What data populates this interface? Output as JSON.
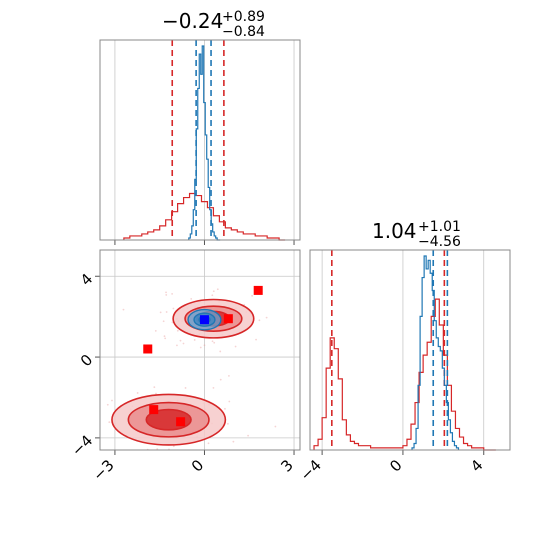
{
  "chart_data": [
    {
      "panel": "top-left",
      "type": "histogram",
      "title": {
        "value": "−0.24",
        "sup": "+0.89",
        "sub": "−0.84"
      },
      "xlim": [
        -3.5,
        3.2
      ],
      "xticks": [
        -3,
        0,
        3
      ],
      "grid": true,
      "series": [
        {
          "name": "",
          "color": "#d62728",
          "x": [
            -2.6,
            -2.4,
            -2.2,
            -2.0,
            -1.8,
            -1.6,
            -1.4,
            -1.2,
            -1.0,
            -0.8,
            -0.6,
            -0.4,
            -0.2,
            0.0,
            0.2,
            0.4,
            0.6,
            0.8,
            1.0,
            1.2,
            1.4,
            1.6,
            1.8,
            2.0,
            2.2,
            2.4,
            2.6
          ],
          "density": [
            0.01,
            0.02,
            0.02,
            0.03,
            0.04,
            0.05,
            0.07,
            0.1,
            0.14,
            0.18,
            0.21,
            0.23,
            0.22,
            0.19,
            0.16,
            0.12,
            0.09,
            0.06,
            0.05,
            0.04,
            0.03,
            0.03,
            0.02,
            0.02,
            0.01,
            0.01,
            0.0
          ],
          "lines": [
            -1.08,
            0.65
          ]
        },
        {
          "name": "",
          "color": "#1f77b4",
          "x": [
            -0.5,
            -0.45,
            -0.4,
            -0.35,
            -0.3,
            -0.25,
            -0.2,
            -0.15,
            -0.1,
            -0.05,
            0.0,
            0.05,
            0.1,
            0.15,
            0.2,
            0.25,
            0.3,
            0.35,
            0.4,
            0.45,
            0.5
          ],
          "density": [
            0.01,
            0.03,
            0.07,
            0.15,
            0.3,
            0.55,
            0.75,
            0.92,
            0.82,
            0.96,
            0.68,
            0.52,
            0.4,
            0.26,
            0.15,
            0.08,
            0.04,
            0.02,
            0.01,
            0.0,
            0.0
          ],
          "lines": [
            -0.28,
            0.22
          ]
        }
      ]
    },
    {
      "panel": "bottom-right",
      "type": "histogram",
      "title": {
        "value": "1.04",
        "sup": "+1.01",
        "sub": "−4.56"
      },
      "xlim": [
        -4.6,
        5.3
      ],
      "xticks": [
        -4,
        0,
        4
      ],
      "grid": true,
      "series": [
        {
          "name": "",
          "color": "#d62728",
          "x": [
            -4.3,
            -4.1,
            -3.9,
            -3.7,
            -3.5,
            -3.3,
            -3.1,
            -2.9,
            -2.7,
            -2.5,
            -2.3,
            -2.1,
            -1.9,
            -1.7,
            -1.5,
            -1.3,
            -1.1,
            -0.9,
            -0.7,
            -0.5,
            -0.3,
            -0.1,
            0.1,
            0.3,
            0.5,
            0.7,
            0.9,
            1.1,
            1.3,
            1.5,
            1.7,
            1.9,
            2.1,
            2.3,
            2.5,
            2.7,
            2.9,
            3.1,
            3.3,
            3.5,
            3.7,
            3.9,
            4.1,
            4.3,
            4.5
          ],
          "density": [
            0.02,
            0.05,
            0.15,
            0.38,
            0.52,
            0.47,
            0.33,
            0.14,
            0.07,
            0.04,
            0.03,
            0.02,
            0.02,
            0.02,
            0.01,
            0.01,
            0.01,
            0.01,
            0.01,
            0.01,
            0.01,
            0.01,
            0.02,
            0.05,
            0.12,
            0.22,
            0.36,
            0.44,
            0.5,
            0.62,
            0.7,
            0.58,
            0.44,
            0.3,
            0.18,
            0.1,
            0.06,
            0.03,
            0.02,
            0.01,
            0.01,
            0.01,
            0.0,
            0.0,
            0.0
          ],
          "lines": [
            -3.52,
            2.05
          ]
        },
        {
          "name": "",
          "color": "#1f77b4",
          "x": [
            0.5,
            0.6,
            0.7,
            0.8,
            0.9,
            1.0,
            1.1,
            1.2,
            1.3,
            1.4,
            1.5,
            1.6,
            1.7,
            1.8,
            1.9,
            2.0,
            2.1,
            2.2,
            2.3,
            2.4,
            2.5,
            2.6,
            2.7
          ],
          "density": [
            0.01,
            0.03,
            0.1,
            0.3,
            0.62,
            0.8,
            0.9,
            0.84,
            0.88,
            0.82,
            0.74,
            0.6,
            0.52,
            0.48,
            0.46,
            0.38,
            0.3,
            0.22,
            0.14,
            0.08,
            0.04,
            0.02,
            0.01
          ],
          "lines": [
            1.5,
            2.2
          ]
        }
      ]
    },
    {
      "panel": "bottom-left",
      "type": "contour-scatter",
      "xlim": [
        -3.5,
        3.2
      ],
      "ylim": [
        -4.6,
        5.3
      ],
      "xticks": [
        -3,
        0,
        3
      ],
      "yticks": [
        -4,
        0,
        4
      ],
      "grid": true,
      "red_modes": [
        {
          "cx": 0.3,
          "cy": 1.9,
          "levels": [
            [
              1.35,
              0.95
            ],
            [
              0.95,
              0.62
            ],
            [
              0.55,
              0.36
            ]
          ]
        },
        {
          "cx": -1.2,
          "cy": -3.1,
          "levels": [
            [
              1.9,
              1.25
            ],
            [
              1.35,
              0.85
            ],
            [
              0.75,
              0.5
            ]
          ]
        }
      ],
      "blue_mode": {
        "cx": 0.0,
        "cy": 1.85,
        "levels": [
          [
            0.55,
            0.5
          ],
          [
            0.35,
            0.32
          ],
          [
            0.18,
            0.17
          ]
        ]
      },
      "red_points": [
        {
          "x": 1.8,
          "y": 3.3
        },
        {
          "x": 0.8,
          "y": 1.9
        },
        {
          "x": -1.9,
          "y": 0.4
        },
        {
          "x": -1.7,
          "y": -2.6
        },
        {
          "x": -0.8,
          "y": -3.2
        }
      ],
      "blue_points": [
        {
          "x": 0.0,
          "y": 1.85
        }
      ]
    }
  ]
}
